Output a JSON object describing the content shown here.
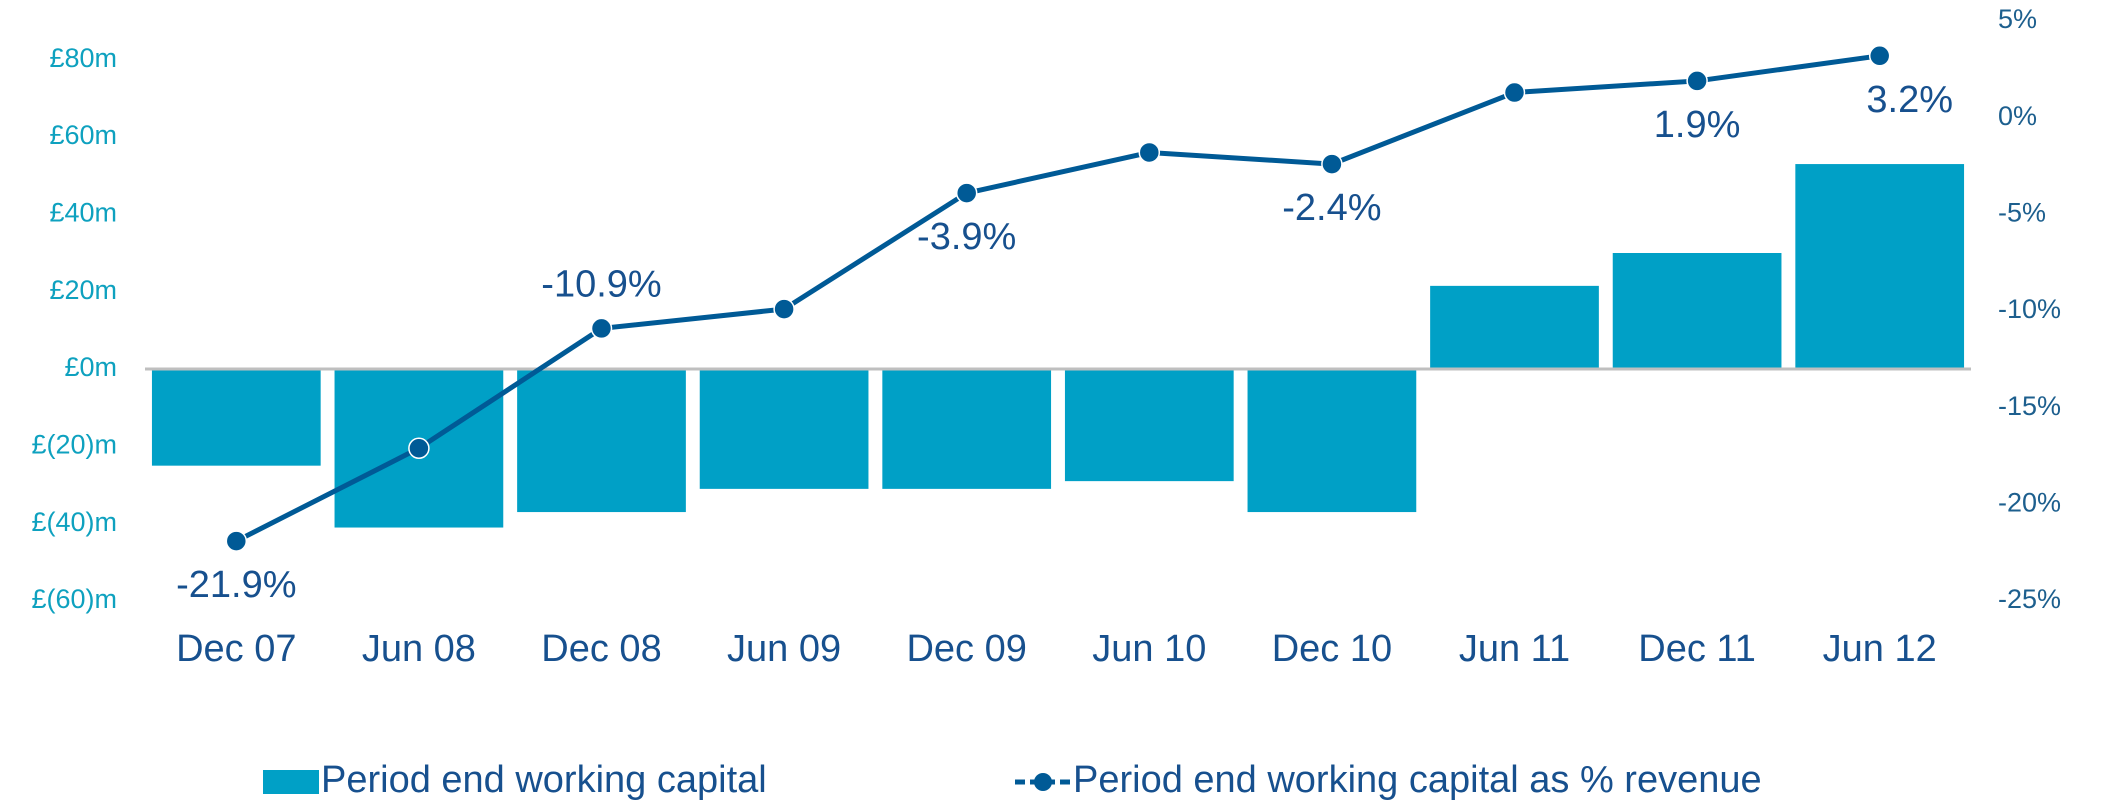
{
  "chart_data": {
    "type": "bar",
    "categories": [
      "Dec 07",
      "Jun 08",
      "Dec 08",
      "Jun 09",
      "Dec 09",
      "Jun 10",
      "Dec 10",
      "Jun 11",
      "Dec 11",
      "Jun 12"
    ],
    "series": [
      {
        "name": "Period end working capital",
        "type": "bar",
        "color": "#00a0c6",
        "values": [
          -25,
          -41,
          -37,
          -31,
          -31,
          -29,
          -37,
          21.5,
          30,
          53
        ]
      },
      {
        "name": "Period end working capital as % revenue",
        "type": "line",
        "axis": "y2",
        "color": "#005a96",
        "values": [
          -21.9,
          -17.1,
          -10.9,
          -9.9,
          -3.9,
          -1.8,
          -2.4,
          1.3,
          1.9,
          3.2
        ],
        "value_labels": [
          "-21.9%",
          null,
          "-10.9%",
          null,
          "-3.9%",
          null,
          "-2.4%",
          null,
          "1.9%",
          "3.2%"
        ]
      }
    ],
    "ylim": [
      -60,
      90
    ],
    "yticks": [
      {
        "value": -60,
        "label": "£(60)m"
      },
      {
        "value": -40,
        "label": "£(40)m"
      },
      {
        "value": -20,
        "label": "£(20)m"
      },
      {
        "value": 0,
        "label": "£0m"
      },
      {
        "value": 20,
        "label": "£20m"
      },
      {
        "value": 40,
        "label": "£40m"
      },
      {
        "value": 60,
        "label": "£60m"
      },
      {
        "value": 80,
        "label": "£80m"
      }
    ],
    "y2lim": [
      -25,
      5
    ],
    "y2ticks": [
      {
        "value": -25,
        "label": "-25%"
      },
      {
        "value": -20,
        "label": "-20%"
      },
      {
        "value": -15,
        "label": "-15%"
      },
      {
        "value": -10,
        "label": "-10%"
      },
      {
        "value": -5,
        "label": "-5%"
      },
      {
        "value": 0,
        "label": "0%"
      },
      {
        "value": 5,
        "label": "5%"
      }
    ],
    "grid": false,
    "legend": "bottom"
  }
}
